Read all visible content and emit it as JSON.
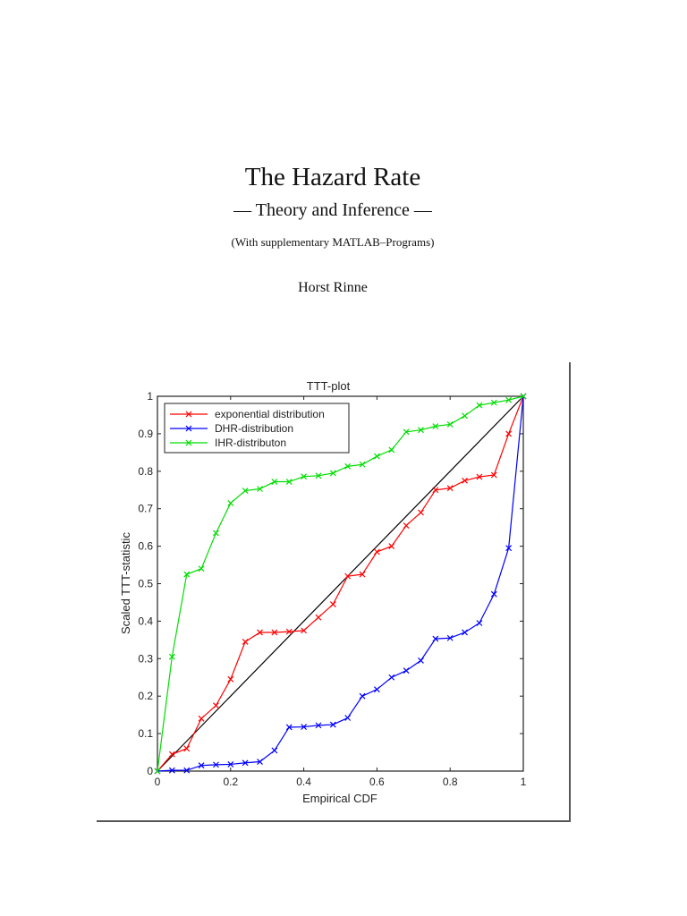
{
  "cover": {
    "title": "The Hazard Rate",
    "subtitle": "— Theory and Inference —",
    "supplement": "(With supplementary MATLAB–Programs)",
    "author": "Horst Rinne"
  },
  "chart_data": {
    "type": "line",
    "title": "TTT-plot",
    "xlabel": "Empirical CDF",
    "ylabel": "Scaled TTT-statistic",
    "xlim": [
      0,
      1
    ],
    "ylim": [
      0,
      1
    ],
    "xticks": [
      "0",
      "0.2",
      "0.4",
      "0.6",
      "0.8",
      "1"
    ],
    "yticks": [
      "0",
      "0.1",
      "0.2",
      "0.3",
      "0.4",
      "0.5",
      "0.6",
      "0.7",
      "0.8",
      "0.9",
      "1"
    ],
    "grid": false,
    "legend_position": "top-left",
    "x": [
      0,
      0.04,
      0.08,
      0.12,
      0.16,
      0.2,
      0.24,
      0.28,
      0.32,
      0.36,
      0.4,
      0.44,
      0.48,
      0.52,
      0.56,
      0.6,
      0.64,
      0.68,
      0.72,
      0.76,
      0.8,
      0.84,
      0.88,
      0.92,
      0.96,
      1
    ],
    "series": [
      {
        "name": "exponential distribution",
        "color": "#ff0000",
        "marker": "x",
        "values": [
          0,
          0.045,
          0.06,
          0.14,
          0.175,
          0.245,
          0.345,
          0.37,
          0.37,
          0.372,
          0.375,
          0.41,
          0.445,
          0.52,
          0.525,
          0.585,
          0.6,
          0.655,
          0.69,
          0.75,
          0.755,
          0.775,
          0.785,
          0.79,
          0.9,
          1
        ]
      },
      {
        "name": "DHR-distribution",
        "color": "#0000ff",
        "marker": "x",
        "values": [
          0,
          0.002,
          0.002,
          0.015,
          0.017,
          0.018,
          0.022,
          0.025,
          0.055,
          0.117,
          0.118,
          0.122,
          0.124,
          0.142,
          0.2,
          0.218,
          0.25,
          0.268,
          0.295,
          0.353,
          0.355,
          0.37,
          0.395,
          0.472,
          0.595,
          1
        ]
      },
      {
        "name": "IHR-distributon",
        "color": "#00dd00",
        "marker": "x",
        "values": [
          0,
          0.305,
          0.525,
          0.54,
          0.635,
          0.715,
          0.748,
          0.753,
          0.772,
          0.772,
          0.786,
          0.788,
          0.795,
          0.813,
          0.818,
          0.84,
          0.857,
          0.905,
          0.91,
          0.92,
          0.925,
          0.948,
          0.976,
          0.983,
          0.99,
          1
        ]
      }
    ],
    "reference_line": {
      "from": [
        0,
        0
      ],
      "to": [
        1,
        1
      ],
      "color": "#000000"
    }
  }
}
